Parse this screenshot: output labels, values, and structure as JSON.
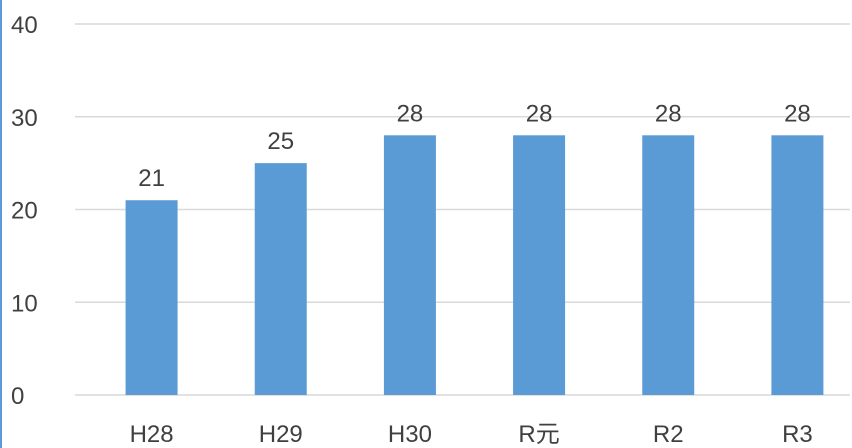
{
  "chart_data": {
    "type": "bar",
    "categories": [
      "H28",
      "H29",
      "H30",
      "R元",
      "R2",
      "R3"
    ],
    "series": [
      {
        "values": [
          21,
          25,
          28,
          28,
          28,
          28
        ],
        "color": "#5B9BD5"
      }
    ],
    "ylim": [
      0,
      40
    ],
    "yticks": [
      0,
      10,
      20,
      30,
      40
    ],
    "grid": true,
    "data_labels": true,
    "gridline_color": "#D9D9D9",
    "text_color": "#404040",
    "frame_color": "#5B9BD5"
  }
}
